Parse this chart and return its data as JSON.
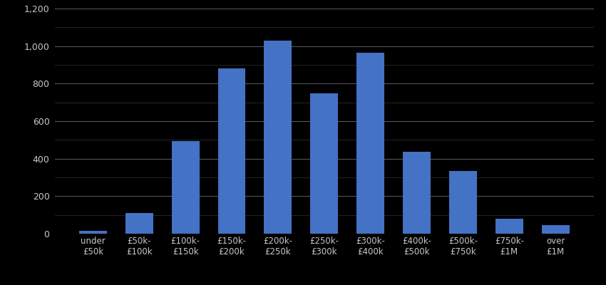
{
  "categories": [
    "under\n£50k",
    "£50k-\n£100k",
    "£100k-\n£150k",
    "£150k-\n£200k",
    "£200k-\n£250k",
    "£250k-\n£300k",
    "£300k-\n£400k",
    "£400k-\n£500k",
    "£500k-\n£750k",
    "£750k-\n£1M",
    "over\n£1M"
  ],
  "values": [
    15,
    110,
    495,
    880,
    1030,
    748,
    965,
    435,
    335,
    80,
    45
  ],
  "bar_color": "#4472C4",
  "background_color": "#000000",
  "text_color": "#c8c8c8",
  "grid_color_major": "#555555",
  "grid_color_minor": "#333333",
  "ylim": [
    0,
    1200
  ],
  "yticks_major": [
    0,
    200,
    400,
    600,
    800,
    1000,
    1200
  ],
  "yticks_minor": [
    100,
    300,
    500,
    700,
    900,
    1100
  ],
  "bar_width": 0.6,
  "figsize": [
    8.5,
    4.0
  ],
  "dpi": 100
}
